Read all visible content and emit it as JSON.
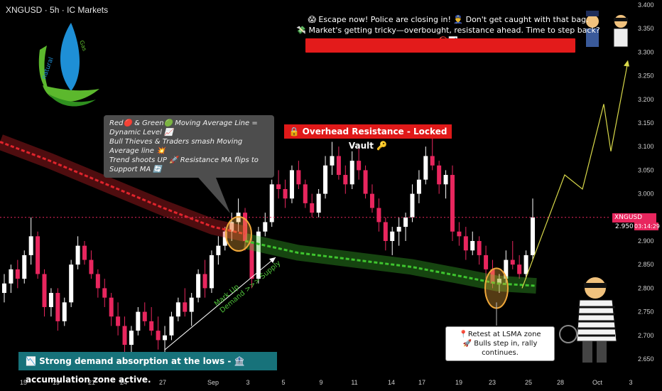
{
  "header": {
    "symbol": "XNGUSD",
    "interval": "5h",
    "broker": "IC Markets",
    "separator": "·"
  },
  "headline": {
    "line1": "😱 Escape now! Police are closing in! 👮‍♂️ Don't get caught with that bag.",
    "line2": "💸 Market's getting tricky—overbought, resistance ahead. Time to step back? 🚫📊"
  },
  "callout": {
    "line1": "Red🔴 & Green🟢 Moving Average Line = Dynamic Level 📈",
    "line2": "Bull Thieves & Traders smash Moving Average line 💥",
    "line3": "Trend shoots UP 🚀 Resistance MA flips to Support MA 🔄"
  },
  "resistance_label": "🔒 Overhead Resistance - Locked Vault 🔑",
  "retest": {
    "line1": "📍Retest at LSMA zone",
    "line2": "🚀 Bulls step in, rally continues."
  },
  "demand_banner": "📉 Strong demand absorption at the lows - 🏦 accumulation zone active.",
  "markup": {
    "line1": "Mark Up",
    "line2": "Demand >>> Supply"
  },
  "price_tag": {
    "symbol": "XNGUSD",
    "price": "2.950",
    "countdown": "03:14:29"
  },
  "logo": {
    "text_left": "natural",
    "text_right": "Gas",
    "colors": [
      "#1e8fd6",
      "#5cb82d"
    ]
  },
  "colors": {
    "bull": "#ffffff",
    "bear": "#e8265e",
    "red_ma": "#e0242c",
    "green_ma": "#3ec42e",
    "projection": "#d9d94a",
    "axis_text": "#cfcfcf",
    "grid_dotted": "#e8265e"
  },
  "chart_data": {
    "type": "candlestick",
    "title": "XNGUSD · 5h · IC Markets",
    "xlabel": "",
    "ylabel": "",
    "ylim": [
      2.62,
      3.41
    ],
    "y_ticks": [
      "3.400",
      "3.350",
      "3.300",
      "3.250",
      "3.200",
      "3.150",
      "3.100",
      "3.050",
      "3.000",
      "2.950",
      "2.900",
      "2.850",
      "2.800",
      "2.750",
      "2.700",
      "2.650"
    ],
    "x_ticks": [
      "15",
      "19",
      "21",
      "24",
      "27",
      "Sep",
      "3",
      "5",
      "9",
      "11",
      "14",
      "17",
      "19",
      "23",
      "25",
      "28",
      "Oct",
      "3"
    ],
    "current_price": 2.95,
    "candles": [
      [
        2.79,
        2.83,
        2.77,
        2.81
      ],
      [
        2.81,
        2.85,
        2.79,
        2.84
      ],
      [
        2.84,
        2.86,
        2.8,
        2.82
      ],
      [
        2.82,
        2.88,
        2.81,
        2.87
      ],
      [
        2.87,
        2.95,
        2.85,
        2.91
      ],
      [
        2.91,
        2.92,
        2.82,
        2.83
      ],
      [
        2.83,
        2.84,
        2.74,
        2.76
      ],
      [
        2.76,
        2.8,
        2.74,
        2.79
      ],
      [
        2.79,
        2.8,
        2.71,
        2.73
      ],
      [
        2.73,
        2.78,
        2.72,
        2.77
      ],
      [
        2.77,
        2.86,
        2.76,
        2.85
      ],
      [
        2.85,
        2.91,
        2.84,
        2.89
      ],
      [
        2.89,
        2.9,
        2.85,
        2.86
      ],
      [
        2.86,
        2.88,
        2.82,
        2.83
      ],
      [
        2.83,
        2.84,
        2.78,
        2.8
      ],
      [
        2.8,
        2.82,
        2.76,
        2.78
      ],
      [
        2.78,
        2.79,
        2.72,
        2.74
      ],
      [
        2.74,
        2.77,
        2.7,
        2.72
      ],
      [
        2.72,
        2.74,
        2.66,
        2.68
      ],
      [
        2.68,
        2.72,
        2.66,
        2.71
      ],
      [
        2.71,
        2.76,
        2.7,
        2.75
      ],
      [
        2.75,
        2.77,
        2.72,
        2.73
      ],
      [
        2.73,
        2.76,
        2.7,
        2.71
      ],
      [
        2.71,
        2.74,
        2.67,
        2.69
      ],
      [
        2.69,
        2.72,
        2.65,
        2.7
      ],
      [
        2.7,
        2.75,
        2.69,
        2.74
      ],
      [
        2.74,
        2.78,
        2.73,
        2.77
      ],
      [
        2.77,
        2.8,
        2.74,
        2.75
      ],
      [
        2.75,
        2.79,
        2.72,
        2.78
      ],
      [
        2.78,
        2.84,
        2.77,
        2.83
      ],
      [
        2.83,
        2.86,
        2.78,
        2.8
      ],
      [
        2.8,
        2.88,
        2.79,
        2.87
      ],
      [
        2.87,
        2.91,
        2.85,
        2.89
      ],
      [
        2.89,
        2.93,
        2.88,
        2.92
      ],
      [
        2.92,
        2.96,
        2.9,
        2.94
      ],
      [
        2.94,
        2.99,
        2.92,
        2.96
      ],
      [
        2.96,
        2.97,
        2.88,
        2.9
      ],
      [
        2.9,
        2.91,
        2.8,
        2.82
      ],
      [
        2.82,
        2.93,
        2.81,
        2.92
      ],
      [
        2.92,
        2.96,
        2.91,
        2.94
      ],
      [
        2.94,
        3.03,
        2.93,
        3.02
      ],
      [
        3.02,
        3.05,
        2.99,
        3.01
      ],
      [
        3.01,
        3.03,
        2.97,
        2.99
      ],
      [
        2.99,
        3.06,
        2.98,
        3.05
      ],
      [
        3.05,
        3.07,
        3.01,
        3.02
      ],
      [
        3.02,
        3.03,
        2.97,
        2.98
      ],
      [
        2.98,
        3.0,
        2.95,
        2.96
      ],
      [
        2.96,
        3.01,
        2.95,
        3.0
      ],
      [
        3.0,
        3.08,
        2.99,
        3.06
      ],
      [
        3.06,
        3.11,
        3.04,
        3.08
      ],
      [
        3.08,
        3.1,
        3.03,
        3.04
      ],
      [
        3.04,
        3.06,
        3.0,
        3.02
      ],
      [
        3.02,
        3.09,
        3.01,
        3.07
      ],
      [
        3.07,
        3.1,
        3.03,
        3.05
      ],
      [
        3.05,
        3.06,
        2.99,
        3.0
      ],
      [
        3.0,
        3.02,
        2.96,
        2.97
      ],
      [
        2.97,
        2.99,
        2.92,
        2.94
      ],
      [
        2.94,
        2.95,
        2.88,
        2.9
      ],
      [
        2.9,
        2.93,
        2.87,
        2.92
      ],
      [
        2.92,
        2.95,
        2.89,
        2.93
      ],
      [
        2.93,
        2.96,
        2.9,
        2.95
      ],
      [
        2.95,
        3.02,
        2.94,
        3.0
      ],
      [
        3.0,
        3.05,
        2.98,
        3.03
      ],
      [
        3.03,
        3.1,
        3.02,
        3.08
      ],
      [
        3.08,
        3.12,
        3.05,
        3.06
      ],
      [
        3.06,
        3.07,
        3.0,
        3.02
      ],
      [
        3.02,
        3.05,
        2.99,
        3.04
      ],
      [
        3.04,
        3.06,
        2.9,
        2.92
      ],
      [
        2.92,
        2.94,
        2.89,
        2.91
      ],
      [
        2.91,
        2.93,
        2.86,
        2.88
      ],
      [
        2.88,
        2.92,
        2.87,
        2.9
      ],
      [
        2.9,
        2.91,
        2.85,
        2.87
      ],
      [
        2.87,
        2.89,
        2.82,
        2.84
      ],
      [
        2.84,
        2.86,
        2.8,
        2.81
      ],
      [
        2.81,
        2.83,
        2.79,
        2.82
      ],
      [
        2.82,
        2.88,
        2.81,
        2.86
      ],
      [
        2.86,
        2.9,
        2.84,
        2.85
      ],
      [
        2.85,
        2.87,
        2.82,
        2.83
      ],
      [
        2.83,
        2.88,
        2.82,
        2.87
      ],
      [
        2.87,
        2.99,
        2.86,
        2.95
      ]
    ],
    "moving_averages": [
      {
        "name": "",
        "color": "#e0242c",
        "points": [
          [
            0,
            3.11
          ],
          [
            70,
            3.07
          ],
          [
            150,
            3.02
          ],
          [
            230,
            2.97
          ],
          [
            300,
            2.93
          ],
          [
            345,
            2.915
          ]
        ]
      },
      {
        "name": "",
        "color": "#3ec42e",
        "points": [
          [
            345,
            2.9
          ],
          [
            420,
            2.875
          ],
          [
            500,
            2.86
          ],
          [
            580,
            2.845
          ],
          [
            650,
            2.825
          ],
          [
            700,
            2.81
          ],
          [
            755,
            2.805
          ]
        ]
      }
    ],
    "projection": {
      "points": [
        [
          735,
          2.8
        ],
        [
          795,
          3.04
        ],
        [
          820,
          3.01
        ],
        [
          850,
          3.19
        ],
        [
          860,
          3.09
        ],
        [
          884,
          3.28
        ]
      ]
    },
    "horizontal_level": 2.95
  }
}
